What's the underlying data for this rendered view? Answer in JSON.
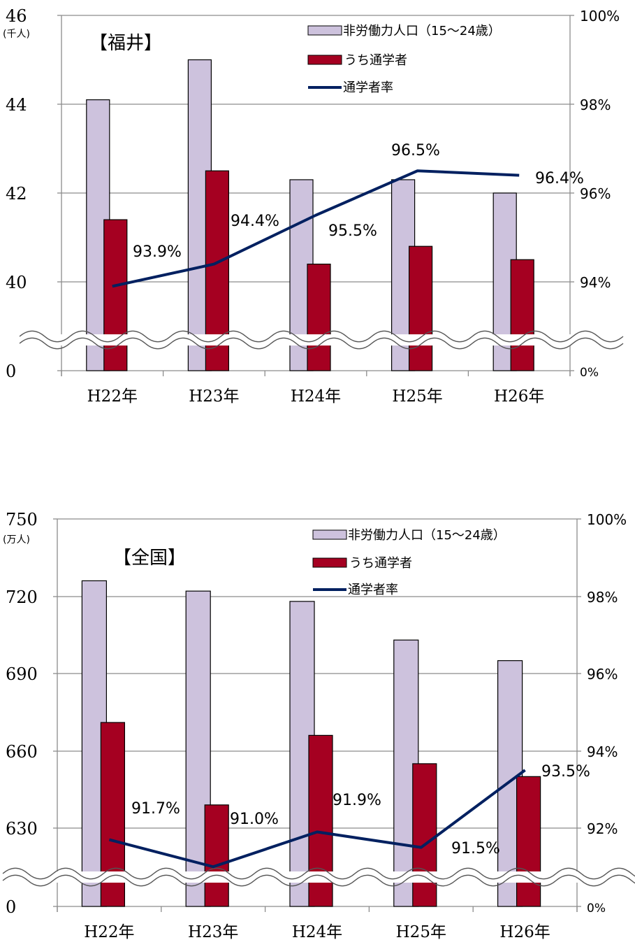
{
  "colors": {
    "population_fill": "#cdc2dd",
    "students_fill": "#a50021",
    "rate_line": "#002060",
    "grid": "#8c8c8c",
    "axis": "#8c8c8c"
  },
  "chart_data": [
    {
      "type": "bar",
      "title": "【福井】",
      "unit": "(千人)",
      "categories": [
        "H22年",
        "H23年",
        "H24年",
        "H25年",
        "H26年"
      ],
      "y_ticks": [
        "0",
        "40",
        "42",
        "44",
        "46"
      ],
      "y2_ticks": [
        "0%",
        "94%",
        "96%",
        "98%",
        "100%"
      ],
      "axis_break": true,
      "series": [
        {
          "name": "非労働力人口（15～24歳）",
          "kind": "bar",
          "values": [
            44.1,
            45.0,
            42.3,
            42.3,
            42.0
          ]
        },
        {
          "name": "うち通学者",
          "kind": "bar",
          "values": [
            41.4,
            42.5,
            40.4,
            40.8,
            40.5
          ]
        },
        {
          "name": "通学者率",
          "kind": "line",
          "axis": "secondary",
          "values": [
            93.9,
            94.4,
            95.5,
            96.5,
            96.4
          ]
        }
      ],
      "data_labels": [
        "93.9%",
        "94.4%",
        "95.5%",
        "96.5%",
        "96.4%"
      ]
    },
    {
      "type": "bar",
      "title": "【全国】",
      "unit": "(万人)",
      "categories": [
        "H22年",
        "H23年",
        "H24年",
        "H25年",
        "H26年"
      ],
      "y_ticks": [
        "0",
        "630",
        "660",
        "690",
        "720",
        "750"
      ],
      "y2_ticks": [
        "0%",
        "92%",
        "94%",
        "96%",
        "98%",
        "100%"
      ],
      "axis_break": true,
      "series": [
        {
          "name": "非労働力人口（15～24歳）",
          "kind": "bar",
          "values": [
            726,
            722,
            718,
            703,
            695
          ]
        },
        {
          "name": "うち通学者",
          "kind": "bar",
          "values": [
            671,
            639,
            666,
            655,
            650
          ]
        },
        {
          "name": "通学者率",
          "kind": "line",
          "axis": "secondary",
          "values": [
            91.7,
            91.0,
            91.9,
            91.5,
            93.5
          ]
        }
      ],
      "data_labels": [
        "91.7%",
        "91.0%",
        "91.9%",
        "91.5%",
        "93.5%"
      ]
    }
  ]
}
